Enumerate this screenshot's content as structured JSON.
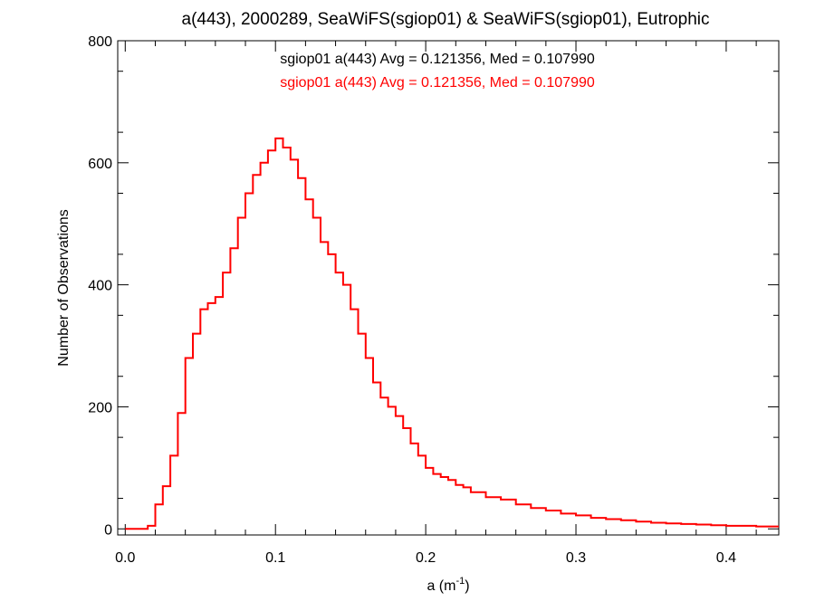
{
  "chart_data": {
    "type": "line",
    "title": "a(443), 2000289, SeaWiFS(sgiop01) & SeaWiFS(sgiop01), Eutrophic",
    "xlabel": "a (m",
    "xlabel_superscript": "-1",
    "xlabel_suffix": ")",
    "ylabel": "Number of Observations",
    "xlim": [
      -0.005,
      0.435
    ],
    "ylim": [
      -10,
      800
    ],
    "xticks": [
      0.0,
      0.1,
      0.2,
      0.3,
      0.4
    ],
    "xtick_labels": [
      "0.0",
      "0.1",
      "0.2",
      "0.3",
      "0.4"
    ],
    "yticks": [
      0,
      200,
      400,
      600,
      800
    ],
    "ytick_labels": [
      "0",
      "200",
      "400",
      "600",
      "800"
    ],
    "grid": false,
    "legend": [
      {
        "text": "sgiop01 a(443) Avg = 0.121356, Med = 0.107990",
        "color": "#000000"
      },
      {
        "text": "sgiop01 a(443) Avg = 0.121356, Med = 0.107990",
        "color": "#ff0000"
      }
    ],
    "series": [
      {
        "color": "#ff0000",
        "step": true,
        "x": [
          0.0,
          0.01,
          0.015,
          0.02,
          0.025,
          0.03,
          0.035,
          0.04,
          0.045,
          0.05,
          0.055,
          0.06,
          0.065,
          0.07,
          0.075,
          0.08,
          0.085,
          0.09,
          0.095,
          0.1,
          0.105,
          0.11,
          0.115,
          0.12,
          0.125,
          0.13,
          0.135,
          0.14,
          0.145,
          0.15,
          0.155,
          0.16,
          0.165,
          0.17,
          0.175,
          0.18,
          0.185,
          0.19,
          0.195,
          0.2,
          0.205,
          0.21,
          0.215,
          0.22,
          0.225,
          0.23,
          0.24,
          0.25,
          0.26,
          0.27,
          0.28,
          0.29,
          0.3,
          0.31,
          0.32,
          0.33,
          0.34,
          0.35,
          0.36,
          0.37,
          0.38,
          0.39,
          0.4,
          0.41,
          0.42,
          0.43
        ],
        "values": [
          0,
          0,
          5,
          40,
          70,
          120,
          190,
          280,
          320,
          360,
          370,
          380,
          420,
          460,
          510,
          550,
          580,
          600,
          620,
          640,
          625,
          605,
          575,
          540,
          510,
          470,
          450,
          420,
          400,
          360,
          320,
          280,
          240,
          215,
          200,
          185,
          165,
          140,
          120,
          100,
          90,
          85,
          80,
          72,
          68,
          60,
          52,
          48,
          40,
          34,
          30,
          25,
          22,
          18,
          16,
          14,
          12,
          10,
          9,
          8,
          7,
          6,
          5,
          5,
          4,
          4
        ]
      }
    ]
  }
}
